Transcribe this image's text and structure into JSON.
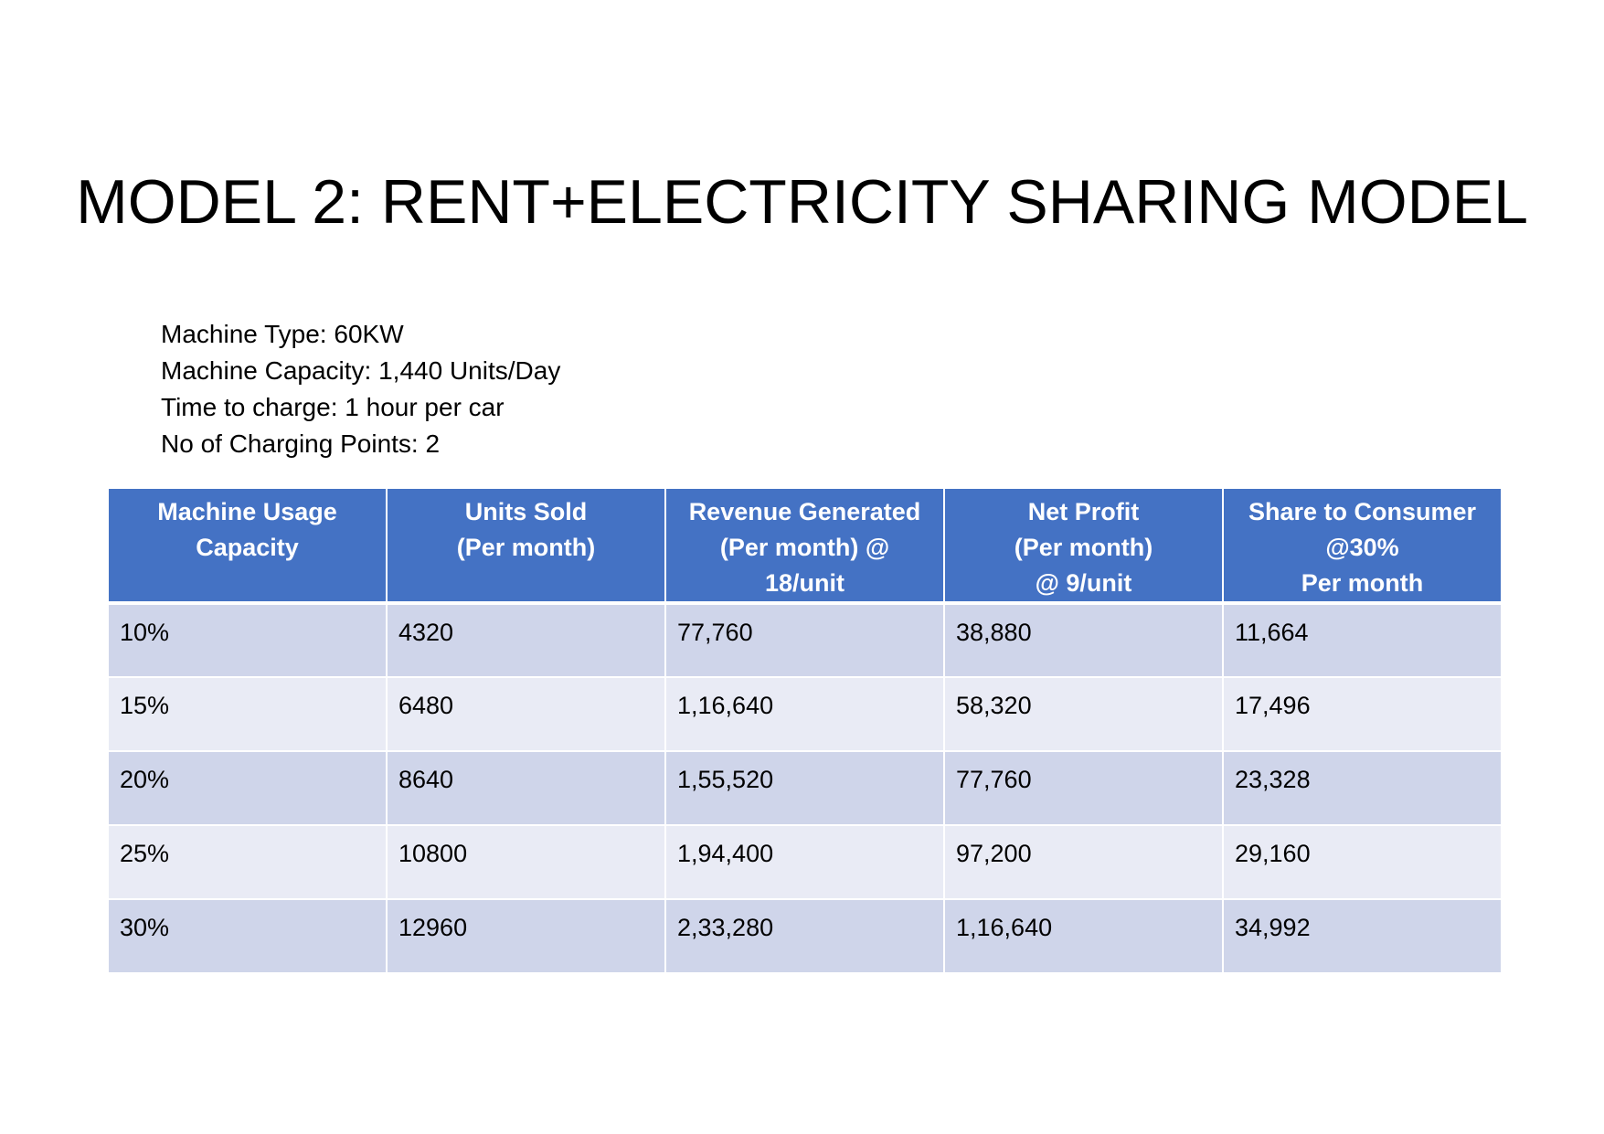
{
  "title": "MODEL 2: RENT+ELECTRICITY SHARING MODEL",
  "specs": [
    "Machine Type: 60KW",
    "Machine Capacity: 1,440 Units/Day",
    "Time to charge: 1 hour per car",
    "No of Charging Points: 2"
  ],
  "table": {
    "headers": [
      [
        "Machine Usage",
        "Capacity"
      ],
      [
        "Units Sold",
        "(Per month)"
      ],
      [
        "Revenue Generated",
        "(Per month) @",
        "18/unit"
      ],
      [
        "Net Profit",
        "(Per month)",
        "@ 9/unit"
      ],
      [
        "Share to Consumer",
        "@30%",
        "Per month"
      ]
    ],
    "rows": [
      [
        "10%",
        "4320",
        "77,760",
        "38,880",
        "11,664"
      ],
      [
        "15%",
        "6480",
        "1,16,640",
        "58,320",
        "17,496"
      ],
      [
        "20%",
        "8640",
        "1,55,520",
        "77,760",
        "23,328"
      ],
      [
        "25%",
        "10800",
        "1,94,400",
        "97,200",
        "29,160"
      ],
      [
        "30%",
        "12960",
        "2,33,280",
        "1,16,640",
        "34,992"
      ]
    ]
  },
  "colors": {
    "header_bg": "#4472c4",
    "row_odd_bg": "#cfd5ea",
    "row_even_bg": "#e9ebf5"
  }
}
